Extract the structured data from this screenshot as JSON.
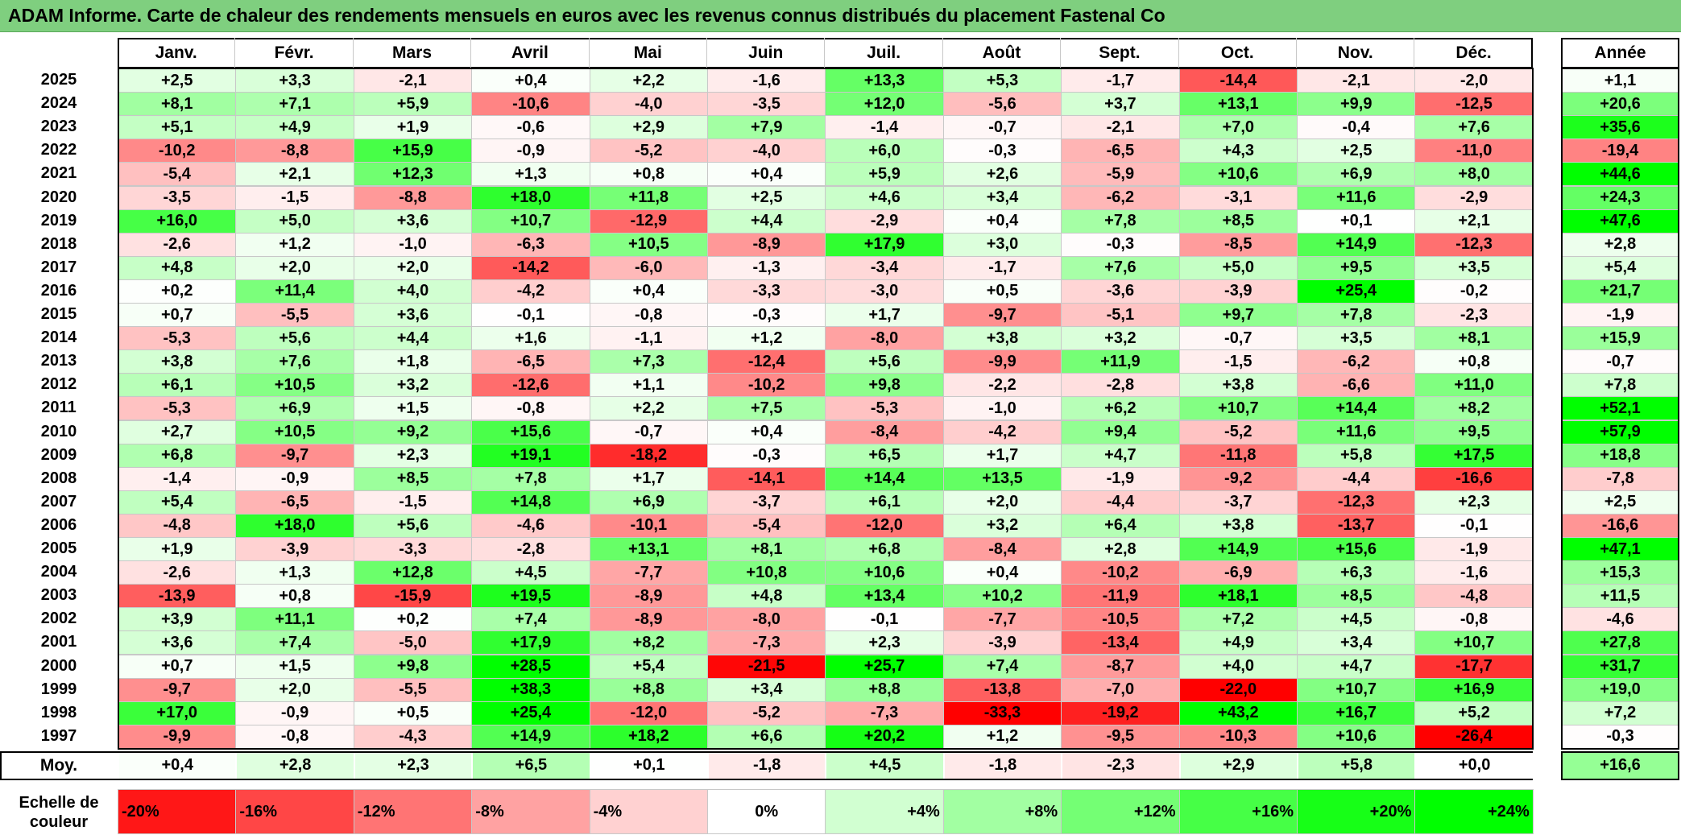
{
  "title": "ADAM Informe. Carte de chaleur des rendements mensuels en euros avec les revenus connus distribués du placement Fastenal Co",
  "chart_data": {
    "type": "heatmap",
    "title": "ADAM Informe. Carte de chaleur des rendements mensuels en euros avec les revenus connus distribués du placement Fastenal Co",
    "columns": [
      "Janv.",
      "Févr.",
      "Mars",
      "Avril",
      "Mai",
      "Juin",
      "Juil.",
      "Août",
      "Sept.",
      "Oct.",
      "Nov.",
      "Déc."
    ],
    "annual_header": "Année",
    "rows": [
      {
        "year": "2025",
        "values": [
          "+2,5",
          "+3,3",
          "-2,1",
          "+0,4",
          "+2,2",
          "-1,6",
          "+13,3",
          "+5,3",
          "-1,7",
          "-14,4",
          "-2,1",
          "-2,0"
        ],
        "annual": "+1,1"
      },
      {
        "year": "2024",
        "values": [
          "+8,1",
          "+7,1",
          "+5,9",
          "-10,6",
          "-4,0",
          "-3,5",
          "+12,0",
          "-5,6",
          "+3,7",
          "+13,1",
          "+9,9",
          "-12,5"
        ],
        "annual": "+20,6"
      },
      {
        "year": "2023",
        "values": [
          "+5,1",
          "+4,9",
          "+1,9",
          "-0,6",
          "+2,9",
          "+7,9",
          "-1,4",
          "-0,7",
          "-2,1",
          "+7,0",
          "-0,4",
          "+7,6"
        ],
        "annual": "+35,6"
      },
      {
        "year": "2022",
        "values": [
          "-10,2",
          "-8,8",
          "+15,9",
          "-0,9",
          "-5,2",
          "-4,0",
          "+6,0",
          "-0,3",
          "-6,5",
          "+4,3",
          "+2,5",
          "-11,0"
        ],
        "annual": "-19,4"
      },
      {
        "year": "2021",
        "values": [
          "-5,4",
          "+2,1",
          "+12,3",
          "+1,3",
          "+0,8",
          "+0,4",
          "+5,9",
          "+2,6",
          "-5,9",
          "+10,6",
          "+6,9",
          "+8,0"
        ],
        "annual": "+44,6"
      },
      {
        "year": "2020",
        "values": [
          "-3,5",
          "-1,5",
          "-8,8",
          "+18,0",
          "+11,8",
          "+2,5",
          "+4,6",
          "+3,4",
          "-6,2",
          "-3,1",
          "+11,6",
          "-2,9"
        ],
        "annual": "+24,3"
      },
      {
        "year": "2019",
        "values": [
          "+16,0",
          "+5,0",
          "+3,6",
          "+10,7",
          "-12,9",
          "+4,4",
          "-2,9",
          "+0,4",
          "+7,8",
          "+8,5",
          "+0,1",
          "+2,1"
        ],
        "annual": "+47,6"
      },
      {
        "year": "2018",
        "values": [
          "-2,6",
          "+1,2",
          "-1,0",
          "-6,3",
          "+10,5",
          "-8,9",
          "+17,9",
          "+3,0",
          "-0,3",
          "-8,5",
          "+14,9",
          "-12,3"
        ],
        "annual": "+2,8"
      },
      {
        "year": "2017",
        "values": [
          "+4,8",
          "+2,0",
          "+2,0",
          "-14,2",
          "-6,0",
          "-1,3",
          "-3,4",
          "-1,7",
          "+7,6",
          "+5,0",
          "+9,5",
          "+3,5"
        ],
        "annual": "+5,4"
      },
      {
        "year": "2016",
        "values": [
          "+0,2",
          "+11,4",
          "+4,0",
          "-4,2",
          "+0,4",
          "-3,3",
          "-3,0",
          "+0,5",
          "-3,6",
          "-3,9",
          "+25,4",
          "-0,2"
        ],
        "annual": "+21,7"
      },
      {
        "year": "2015",
        "values": [
          "+0,7",
          "-5,5",
          "+3,6",
          "-0,1",
          "-0,8",
          "-0,3",
          "+1,7",
          "-9,7",
          "-5,1",
          "+9,7",
          "+7,8",
          "-2,3"
        ],
        "annual": "-1,9"
      },
      {
        "year": "2014",
        "values": [
          "-5,3",
          "+5,6",
          "+4,4",
          "+1,6",
          "-1,1",
          "+1,2",
          "-8,0",
          "+3,8",
          "+3,2",
          "-0,7",
          "+3,5",
          "+8,1"
        ],
        "annual": "+15,9"
      },
      {
        "year": "2013",
        "values": [
          "+3,8",
          "+7,6",
          "+1,8",
          "-6,5",
          "+7,3",
          "-12,4",
          "+5,6",
          "-9,9",
          "+11,9",
          "-1,5",
          "-6,2",
          "+0,8"
        ],
        "annual": "-0,7"
      },
      {
        "year": "2012",
        "values": [
          "+6,1",
          "+10,5",
          "+3,2",
          "-12,6",
          "+1,1",
          "-10,2",
          "+9,8",
          "-2,2",
          "-2,8",
          "+3,8",
          "-6,6",
          "+11,0"
        ],
        "annual": "+7,8"
      },
      {
        "year": "2011",
        "values": [
          "-5,3",
          "+6,9",
          "+1,5",
          "-0,8",
          "+2,2",
          "+7,5",
          "-5,3",
          "-1,0",
          "+6,2",
          "+10,7",
          "+14,4",
          "+8,2"
        ],
        "annual": "+52,1"
      },
      {
        "year": "2010",
        "values": [
          "+2,7",
          "+10,5",
          "+9,2",
          "+15,6",
          "-0,7",
          "+0,4",
          "-8,4",
          "-4,2",
          "+9,4",
          "-5,2",
          "+11,6",
          "+9,5"
        ],
        "annual": "+57,9"
      },
      {
        "year": "2009",
        "values": [
          "+6,8",
          "-9,7",
          "+2,3",
          "+19,1",
          "-18,2",
          "-0,3",
          "+6,5",
          "+1,7",
          "+4,7",
          "-11,8",
          "+5,8",
          "+17,5"
        ],
        "annual": "+18,8"
      },
      {
        "year": "2008",
        "values": [
          "-1,4",
          "-0,9",
          "+8,5",
          "+7,8",
          "+1,7",
          "-14,1",
          "+14,4",
          "+13,5",
          "-1,9",
          "-9,2",
          "-4,4",
          "-16,6"
        ],
        "annual": "-7,8"
      },
      {
        "year": "2007",
        "values": [
          "+5,4",
          "-6,5",
          "-1,5",
          "+14,8",
          "+6,9",
          "-3,7",
          "+6,1",
          "+2,0",
          "-4,4",
          "-3,7",
          "-12,3",
          "+2,3"
        ],
        "annual": "+2,5"
      },
      {
        "year": "2006",
        "values": [
          "-4,8",
          "+18,0",
          "+5,6",
          "-4,6",
          "-10,1",
          "-5,4",
          "-12,0",
          "+3,2",
          "+6,4",
          "+3,8",
          "-13,7",
          "-0,1"
        ],
        "annual": "-16,6"
      },
      {
        "year": "2005",
        "values": [
          "+1,9",
          "-3,9",
          "-3,3",
          "-2,8",
          "+13,1",
          "+8,1",
          "+6,8",
          "-8,4",
          "+2,8",
          "+14,9",
          "+15,6",
          "-1,9"
        ],
        "annual": "+47,1"
      },
      {
        "year": "2004",
        "values": [
          "-2,6",
          "+1,3",
          "+12,8",
          "+4,5",
          "-7,7",
          "+10,8",
          "+10,6",
          "+0,4",
          "-10,2",
          "-6,9",
          "+6,3",
          "-1,6"
        ],
        "annual": "+15,3"
      },
      {
        "year": "2003",
        "values": [
          "-13,9",
          "+0,8",
          "-15,9",
          "+19,5",
          "-8,9",
          "+4,8",
          "+13,4",
          "+10,2",
          "-11,9",
          "+18,1",
          "+8,5",
          "-4,8"
        ],
        "annual": "+11,5"
      },
      {
        "year": "2002",
        "values": [
          "+3,9",
          "+11,1",
          "+0,2",
          "+7,4",
          "-8,9",
          "-8,0",
          "-0,1",
          "-7,7",
          "-10,5",
          "+7,2",
          "+4,5",
          "-0,8"
        ],
        "annual": "-4,6"
      },
      {
        "year": "2001",
        "values": [
          "+3,6",
          "+7,4",
          "-5,0",
          "+17,9",
          "+8,2",
          "-7,3",
          "+2,3",
          "-3,9",
          "-13,4",
          "+4,9",
          "+3,4",
          "+10,7"
        ],
        "annual": "+27,8"
      },
      {
        "year": "2000",
        "values": [
          "+0,7",
          "+1,5",
          "+9,8",
          "+28,5",
          "+5,4",
          "-21,5",
          "+25,7",
          "+7,4",
          "-8,7",
          "+4,0",
          "+4,7",
          "-17,7"
        ],
        "annual": "+31,7"
      },
      {
        "year": "1999",
        "values": [
          "-9,7",
          "+2,0",
          "-5,5",
          "+38,3",
          "+8,8",
          "+3,4",
          "+8,8",
          "-13,8",
          "-7,0",
          "-22,0",
          "+10,7",
          "+16,9"
        ],
        "annual": "+19,0"
      },
      {
        "year": "1998",
        "values": [
          "+17,0",
          "-0,9",
          "+0,5",
          "+25,4",
          "-12,0",
          "-5,2",
          "-7,3",
          "-33,3",
          "-19,2",
          "+43,2",
          "+16,7",
          "+5,2"
        ],
        "annual": "+7,2"
      },
      {
        "year": "1997",
        "values": [
          "-9,9",
          "-0,8",
          "-4,3",
          "+14,9",
          "+18,2",
          "+6,6",
          "+20,2",
          "+1,2",
          "-9,5",
          "-10,3",
          "+10,6",
          "-26,4"
        ],
        "annual": "-0,3"
      }
    ],
    "average": {
      "label": "Moy.",
      "values": [
        "+0,4",
        "+2,8",
        "+2,3",
        "+6,5",
        "+0,1",
        "-1,8",
        "+4,5",
        "-1,8",
        "-2,3",
        "+2,9",
        "+5,8",
        "+0,0"
      ],
      "annual": "+16,6"
    },
    "scale": {
      "label_line1": "Echelle de",
      "label_line2": "couleur",
      "stops": [
        {
          "label": "-20%",
          "value": -20
        },
        {
          "label": "-16%",
          "value": -16
        },
        {
          "label": "-12%",
          "value": -12
        },
        {
          "label": "-8%",
          "value": -8
        },
        {
          "label": "-4%",
          "value": -4
        },
        {
          "label": "0%",
          "value": 0
        },
        {
          "label": "+4%",
          "value": 4
        },
        {
          "label": "+8%",
          "value": 8
        },
        {
          "label": "+12%",
          "value": 12
        },
        {
          "label": "+16%",
          "value": 16
        },
        {
          "label": "+20%",
          "value": 20
        },
        {
          "label": "+24%",
          "value": 24
        }
      ]
    },
    "colors": {
      "negative": "#ff0000",
      "neutral": "#ffffff",
      "positive": "#00ff00",
      "title_bar": "#7fcf7f"
    }
  }
}
